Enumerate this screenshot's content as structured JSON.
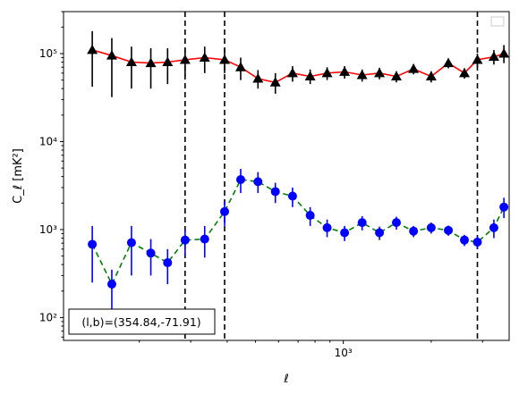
{
  "chart_data": {
    "type": "scatter",
    "title": "",
    "xlabel": "ℓ",
    "ylabel": "C_ℓ [mK²]",
    "xscale": "log",
    "yscale": "log",
    "xlim": [
      110,
      3700
    ],
    "ylim": [
      55,
      300000
    ],
    "x_tick_labels": [
      "10³"
    ],
    "y_tick_labels": [
      "10²",
      "10³",
      "10⁴",
      "10⁵"
    ],
    "legend": "empty box top-right",
    "annotation": "(l,b)=(354.84,-71.91)",
    "vertical_lines": [
      287,
      392,
      2880
    ],
    "series": [
      {
        "marker": "triangle",
        "marker_color": "#000000",
        "line_color": "#ff0000",
        "line_style": "solid",
        "points": [
          {
            "x": 138,
            "y": 110000,
            "lo": 42000,
            "hi": 180000
          },
          {
            "x": 161,
            "y": 95000,
            "lo": 32000,
            "hi": 150000
          },
          {
            "x": 188,
            "y": 80000,
            "lo": 40000,
            "hi": 120000
          },
          {
            "x": 219,
            "y": 78000,
            "lo": 40000,
            "hi": 115000
          },
          {
            "x": 250,
            "y": 80000,
            "lo": 45000,
            "hi": 115000
          },
          {
            "x": 287,
            "y": 85000,
            "lo": 55000,
            "hi": 115000
          },
          {
            "x": 335,
            "y": 90000,
            "lo": 60000,
            "hi": 120000
          },
          {
            "x": 392,
            "y": 85000,
            "lo": 60000,
            "hi": 115000
          },
          {
            "x": 445,
            "y": 70000,
            "lo": 50000,
            "hi": 90000
          },
          {
            "x": 510,
            "y": 52000,
            "lo": 40000,
            "hi": 65000
          },
          {
            "x": 585,
            "y": 47000,
            "lo": 35000,
            "hi": 60000
          },
          {
            "x": 670,
            "y": 60000,
            "lo": 48000,
            "hi": 72000
          },
          {
            "x": 770,
            "y": 55000,
            "lo": 45000,
            "hi": 66000
          },
          {
            "x": 880,
            "y": 60000,
            "lo": 50000,
            "hi": 70000
          },
          {
            "x": 1010,
            "y": 62000,
            "lo": 52000,
            "hi": 72000
          },
          {
            "x": 1160,
            "y": 57000,
            "lo": 48000,
            "hi": 66000
          },
          {
            "x": 1330,
            "y": 60000,
            "lo": 51000,
            "hi": 69000
          },
          {
            "x": 1520,
            "y": 55000,
            "lo": 47000,
            "hi": 63000
          },
          {
            "x": 1740,
            "y": 67000,
            "lo": 58000,
            "hi": 76000
          },
          {
            "x": 2000,
            "y": 55000,
            "lo": 47000,
            "hi": 63000
          },
          {
            "x": 2290,
            "y": 78000,
            "lo": 68000,
            "hi": 88000
          },
          {
            "x": 2600,
            "y": 60000,
            "lo": 52000,
            "hi": 68000
          },
          {
            "x": 2880,
            "y": 85000,
            "lo": 70000,
            "hi": 100000
          },
          {
            "x": 3280,
            "y": 92000,
            "lo": 75000,
            "hi": 110000
          },
          {
            "x": 3550,
            "y": 100000,
            "lo": 78000,
            "hi": 125000
          }
        ]
      },
      {
        "marker": "circle",
        "marker_color": "#0000ff",
        "line_color": "#008000",
        "line_style": "dashed",
        "points": [
          {
            "x": 138,
            "y": 680,
            "lo": 250,
            "hi": 1100
          },
          {
            "x": 161,
            "y": 240,
            "lo": 110,
            "hi": 350
          },
          {
            "x": 188,
            "y": 710,
            "lo": 300,
            "hi": 1100
          },
          {
            "x": 219,
            "y": 540,
            "lo": 300,
            "hi": 780
          },
          {
            "x": 250,
            "y": 420,
            "lo": 240,
            "hi": 600
          },
          {
            "x": 287,
            "y": 760,
            "lo": 500,
            "hi": 1000
          },
          {
            "x": 335,
            "y": 780,
            "lo": 480,
            "hi": 1100
          },
          {
            "x": 392,
            "y": 1600,
            "lo": 1100,
            "hi": 2100
          },
          {
            "x": 445,
            "y": 3700,
            "lo": 2600,
            "hi": 4900
          },
          {
            "x": 510,
            "y": 3500,
            "lo": 2600,
            "hi": 4500
          },
          {
            "x": 585,
            "y": 2700,
            "lo": 2000,
            "hi": 3400
          },
          {
            "x": 670,
            "y": 2400,
            "lo": 1800,
            "hi": 3000
          },
          {
            "x": 770,
            "y": 1450,
            "lo": 1100,
            "hi": 1800
          },
          {
            "x": 880,
            "y": 1050,
            "lo": 820,
            "hi": 1300
          },
          {
            "x": 1010,
            "y": 920,
            "lo": 740,
            "hi": 1100
          },
          {
            "x": 1160,
            "y": 1200,
            "lo": 980,
            "hi": 1420
          },
          {
            "x": 1330,
            "y": 920,
            "lo": 760,
            "hi": 1080
          },
          {
            "x": 1520,
            "y": 1200,
            "lo": 1000,
            "hi": 1400
          },
          {
            "x": 1740,
            "y": 960,
            "lo": 820,
            "hi": 1100
          },
          {
            "x": 2000,
            "y": 1050,
            "lo": 900,
            "hi": 1200
          },
          {
            "x": 2290,
            "y": 980,
            "lo": 850,
            "hi": 1110
          },
          {
            "x": 2600,
            "y": 760,
            "lo": 650,
            "hi": 870
          },
          {
            "x": 2880,
            "y": 720,
            "lo": 600,
            "hi": 840
          },
          {
            "x": 3280,
            "y": 1050,
            "lo": 800,
            "hi": 1300
          },
          {
            "x": 3550,
            "y": 1800,
            "lo": 1350,
            "hi": 2300
          }
        ]
      }
    ]
  }
}
